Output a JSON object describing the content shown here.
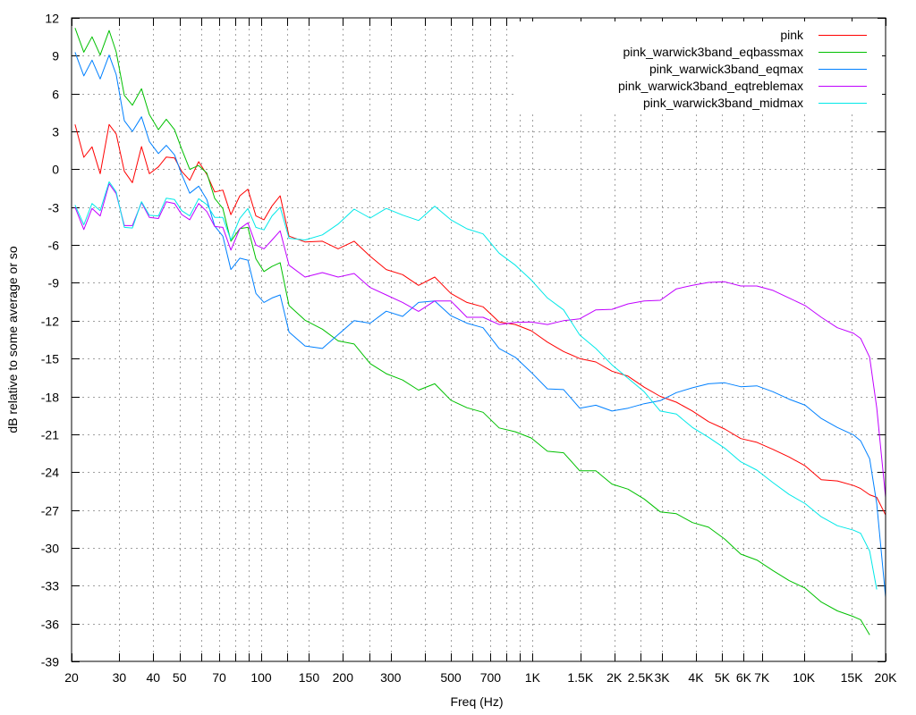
{
  "chart_data": {
    "type": "line",
    "xlabel": "Freq (Hz)",
    "ylabel": "dB relative to some average or so",
    "x_scale": "log",
    "xlim": [
      20,
      20000
    ],
    "ylim": [
      -39,
      12
    ],
    "grid": true,
    "legend_position": "top-right",
    "yticks": [
      12,
      9,
      6,
      3,
      0,
      -3,
      -6,
      -9,
      -12,
      -15,
      -18,
      -21,
      -24,
      -27,
      -30,
      -33,
      -36,
      -39
    ],
    "xticks": [
      {
        "value": 20,
        "label": "20"
      },
      {
        "value": 30,
        "label": "30"
      },
      {
        "value": 40,
        "label": "40"
      },
      {
        "value": 50,
        "label": "50"
      },
      {
        "value": 70,
        "label": "70"
      },
      {
        "value": 100,
        "label": "100"
      },
      {
        "value": 150,
        "label": "150"
      },
      {
        "value": 200,
        "label": "200"
      },
      {
        "value": 300,
        "label": "300"
      },
      {
        "value": 500,
        "label": "500"
      },
      {
        "value": 700,
        "label": "700"
      },
      {
        "value": 1000,
        "label": "1K"
      },
      {
        "value": 1500,
        "label": "1.5K"
      },
      {
        "value": 2000,
        "label": "2K"
      },
      {
        "value": 2500,
        "label": "2.5K"
      },
      {
        "value": 3000,
        "label": "3K"
      },
      {
        "value": 4000,
        "label": "4K"
      },
      {
        "value": 5000,
        "label": "5K"
      },
      {
        "value": 6000,
        "label": "6K"
      },
      {
        "value": 7000,
        "label": "7K"
      },
      {
        "value": 10000,
        "label": "10K"
      },
      {
        "value": 15000,
        "label": "15K"
      },
      {
        "value": 20000,
        "label": "20K"
      }
    ],
    "xticks_unlabeled": [
      60,
      80,
      90,
      125,
      250,
      400,
      600,
      800,
      900
    ],
    "x": [
      20.6,
      22.2,
      23.8,
      25.5,
      27.5,
      29.2,
      31.3,
      33.5,
      36.2,
      38.7,
      41.8,
      44.7,
      47.9,
      50.9,
      54.5,
      58.8,
      63.0,
      67.4,
      72.2,
      77.3,
      83.4,
      89.3,
      95.6,
      102.4,
      109.6,
      117.4,
      126.6,
      145,
      168,
      192,
      220,
      252,
      289,
      332,
      380,
      436,
      500,
      573,
      657,
      753,
      864,
      990,
      1135,
      1301,
      1492,
      1711,
      1961,
      2248,
      2577,
      2955,
      3387,
      3884,
      4452,
      5105,
      5852,
      6709,
      7691,
      8818,
      10109,
      11590,
      13286,
      15231,
      16185,
      17470,
      18550,
      20000
    ],
    "series": [
      {
        "name": "pink",
        "color": "#ff0000",
        "values": [
          3.55,
          0.95,
          1.78,
          -0.35,
          3.55,
          2.8,
          -0.16,
          -1.06,
          1.8,
          -0.35,
          0.19,
          0.97,
          0.9,
          -0.16,
          -0.87,
          0.6,
          -0.4,
          -1.8,
          -1.65,
          -3.6,
          -2.1,
          -1.58,
          -3.7,
          -4.0,
          -2.9,
          -2.1,
          -5.3,
          -5.76,
          -5.7,
          -6.3,
          -5.7,
          -6.9,
          -7.95,
          -8.35,
          -9.2,
          -8.54,
          -9.84,
          -10.55,
          -10.9,
          -12.1,
          -12.3,
          -12.8,
          -13.7,
          -14.44,
          -15.0,
          -15.27,
          -16.0,
          -16.4,
          -17.27,
          -18.0,
          -18.46,
          -19.16,
          -20.0,
          -20.58,
          -21.34,
          -21.64,
          -22.2,
          -22.8,
          -23.5,
          -24.6,
          -24.7,
          -25.06,
          -25.3,
          -25.8,
          -26.0,
          -27.4
        ]
      },
      {
        "name": "pink_warwick3band_eqbassmax",
        "color": "#00c000",
        "values": [
          11.2,
          9.28,
          10.5,
          9.05,
          11.0,
          9.3,
          5.86,
          5.08,
          6.38,
          4.33,
          3.14,
          3.97,
          3.14,
          1.6,
          0,
          0.3,
          -0.3,
          -2.3,
          -3.1,
          -5.7,
          -4.7,
          -4.6,
          -7.1,
          -8.1,
          -7.7,
          -7.4,
          -10.8,
          -11.96,
          -12.67,
          -13.6,
          -13.85,
          -15.4,
          -16.2,
          -16.7,
          -17.5,
          -17.0,
          -18.3,
          -18.9,
          -19.26,
          -20.5,
          -20.8,
          -21.3,
          -22.35,
          -22.47,
          -23.9,
          -23.9,
          -24.95,
          -25.35,
          -26.13,
          -27.15,
          -27.3,
          -28.0,
          -28.37,
          -29.3,
          -30.5,
          -30.97,
          -31.8,
          -32.6,
          -33.2,
          -34.3,
          -35.0,
          -35.45,
          -35.7,
          -36.9,
          null,
          null
        ]
      },
      {
        "name": "pink_warwick3band_eqmax",
        "color": "#0080ff",
        "values": [
          9.28,
          7.4,
          8.65,
          7.16,
          9.05,
          7.5,
          3.85,
          3.0,
          4.16,
          2.2,
          1.25,
          1.9,
          1.14,
          -0.4,
          -1.9,
          -1.34,
          -2.4,
          -4.5,
          -5.3,
          -7.95,
          -7.05,
          -7.2,
          -9.84,
          -10.55,
          -10.2,
          -9.96,
          -12.9,
          -14.0,
          -14.2,
          -13.1,
          -12.0,
          -12.2,
          -11.25,
          -11.66,
          -10.55,
          -10.43,
          -11.6,
          -12.2,
          -12.56,
          -14.2,
          -14.9,
          -16.1,
          -17.4,
          -17.46,
          -18.93,
          -18.7,
          -19.16,
          -18.93,
          -18.58,
          -18.34,
          -17.7,
          -17.32,
          -17.0,
          -16.92,
          -17.23,
          -17.16,
          -17.63,
          -18.22,
          -18.7,
          -19.75,
          -20.46,
          -21.05,
          -21.52,
          -22.94,
          -26.5,
          -33.9
        ]
      },
      {
        "name": "pink_warwick3band_eqtreblemax",
        "color": "#c000ff",
        "values": [
          -3.0,
          -4.77,
          -3.1,
          -3.7,
          -1.15,
          -1.93,
          -4.46,
          -4.46,
          -2.64,
          -3.82,
          -3.9,
          -2.57,
          -2.71,
          -3.58,
          -4.0,
          -2.71,
          -3.35,
          -4.53,
          -4.6,
          -6.4,
          -4.7,
          -4.24,
          -6.0,
          -6.3,
          -5.6,
          -4.88,
          -7.6,
          -8.54,
          -8.19,
          -8.54,
          -8.26,
          -9.37,
          -9.96,
          -10.55,
          -11.26,
          -10.43,
          -10.43,
          -11.73,
          -11.73,
          -12.3,
          -12.13,
          -12.1,
          -12.3,
          -12.0,
          -11.85,
          -11.14,
          -11.1,
          -10.67,
          -10.43,
          -10.38,
          -9.48,
          -9.2,
          -8.97,
          -8.92,
          -9.25,
          -9.25,
          -9.6,
          -10.2,
          -10.8,
          -11.73,
          -12.56,
          -13.0,
          -13.4,
          -14.9,
          -18.9,
          -26.0
        ]
      },
      {
        "name": "pink_warwick3band_midmax",
        "color": "#00e8e8",
        "values": [
          -2.83,
          -4.4,
          -2.71,
          -3.28,
          -0.99,
          -1.8,
          -4.6,
          -4.65,
          -2.57,
          -3.65,
          -3.7,
          -2.29,
          -2.4,
          -3.28,
          -3.7,
          -2.33,
          -2.8,
          -3.82,
          -3.82,
          -5.6,
          -3.89,
          -3.11,
          -4.6,
          -4.8,
          -3.7,
          -3.0,
          -5.47,
          -5.6,
          -5.2,
          -4.34,
          -3.16,
          -3.87,
          -3.1,
          -3.63,
          -4.06,
          -2.93,
          -4.0,
          -4.72,
          -5.12,
          -6.65,
          -7.6,
          -8.78,
          -10.2,
          -11.14,
          -13.14,
          -14.2,
          -15.5,
          -16.56,
          -17.63,
          -19.16,
          -19.4,
          -20.46,
          -21.24,
          -22.1,
          -23.18,
          -23.84,
          -24.83,
          -25.77,
          -26.5,
          -27.54,
          -28.25,
          -28.6,
          -28.85,
          -30.26,
          -33.3,
          null
        ]
      }
    ]
  }
}
